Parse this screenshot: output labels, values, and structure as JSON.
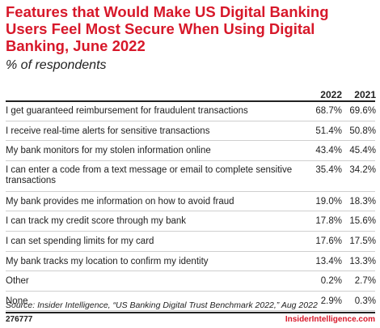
{
  "chart_data": {
    "type": "table",
    "title": "Features that Would Make US Digital Banking Users Feel Most Secure When Using Digital Banking, June 2022",
    "subtitle": "% of respondents",
    "columns": [
      "2022",
      "2021"
    ],
    "rows": [
      {
        "label": "I get guaranteed reimbursement for fraudulent transactions",
        "values": [
          "68.7%",
          "69.6%"
        ]
      },
      {
        "label": "I receive real-time alerts for sensitive transactions",
        "values": [
          "51.4%",
          "50.8%"
        ]
      },
      {
        "label": "My bank monitors for my stolen information online",
        "values": [
          "43.4%",
          "45.4%"
        ]
      },
      {
        "label": "I can enter a code from a text message or email to complete sensitive transactions",
        "values": [
          "35.4%",
          "34.2%"
        ]
      },
      {
        "label": "My bank provides me information on how to avoid fraud",
        "values": [
          "19.0%",
          "18.3%"
        ]
      },
      {
        "label": "I can track my credit score through my bank",
        "values": [
          "17.8%",
          "15.6%"
        ]
      },
      {
        "label": "I can set spending limits for my card",
        "values": [
          "17.6%",
          "17.5%"
        ]
      },
      {
        "label": "My bank tracks my location to confirm my identity",
        "values": [
          "13.4%",
          "13.3%"
        ]
      },
      {
        "label": "Other",
        "values": [
          "0.2%",
          "2.7%"
        ]
      },
      {
        "label": "None",
        "values": [
          "2.9%",
          "0.3%"
        ]
      }
    ],
    "source": "Source: Insider Intelligence, “US Banking Digital Trust Benchmark 2022,” Aug 2022",
    "chart_id": "276777",
    "brand": "InsiderIntelligence.com"
  },
  "colors": {
    "accent": "#d7182a",
    "text": "#222222",
    "rule": "#cfcfcf"
  }
}
